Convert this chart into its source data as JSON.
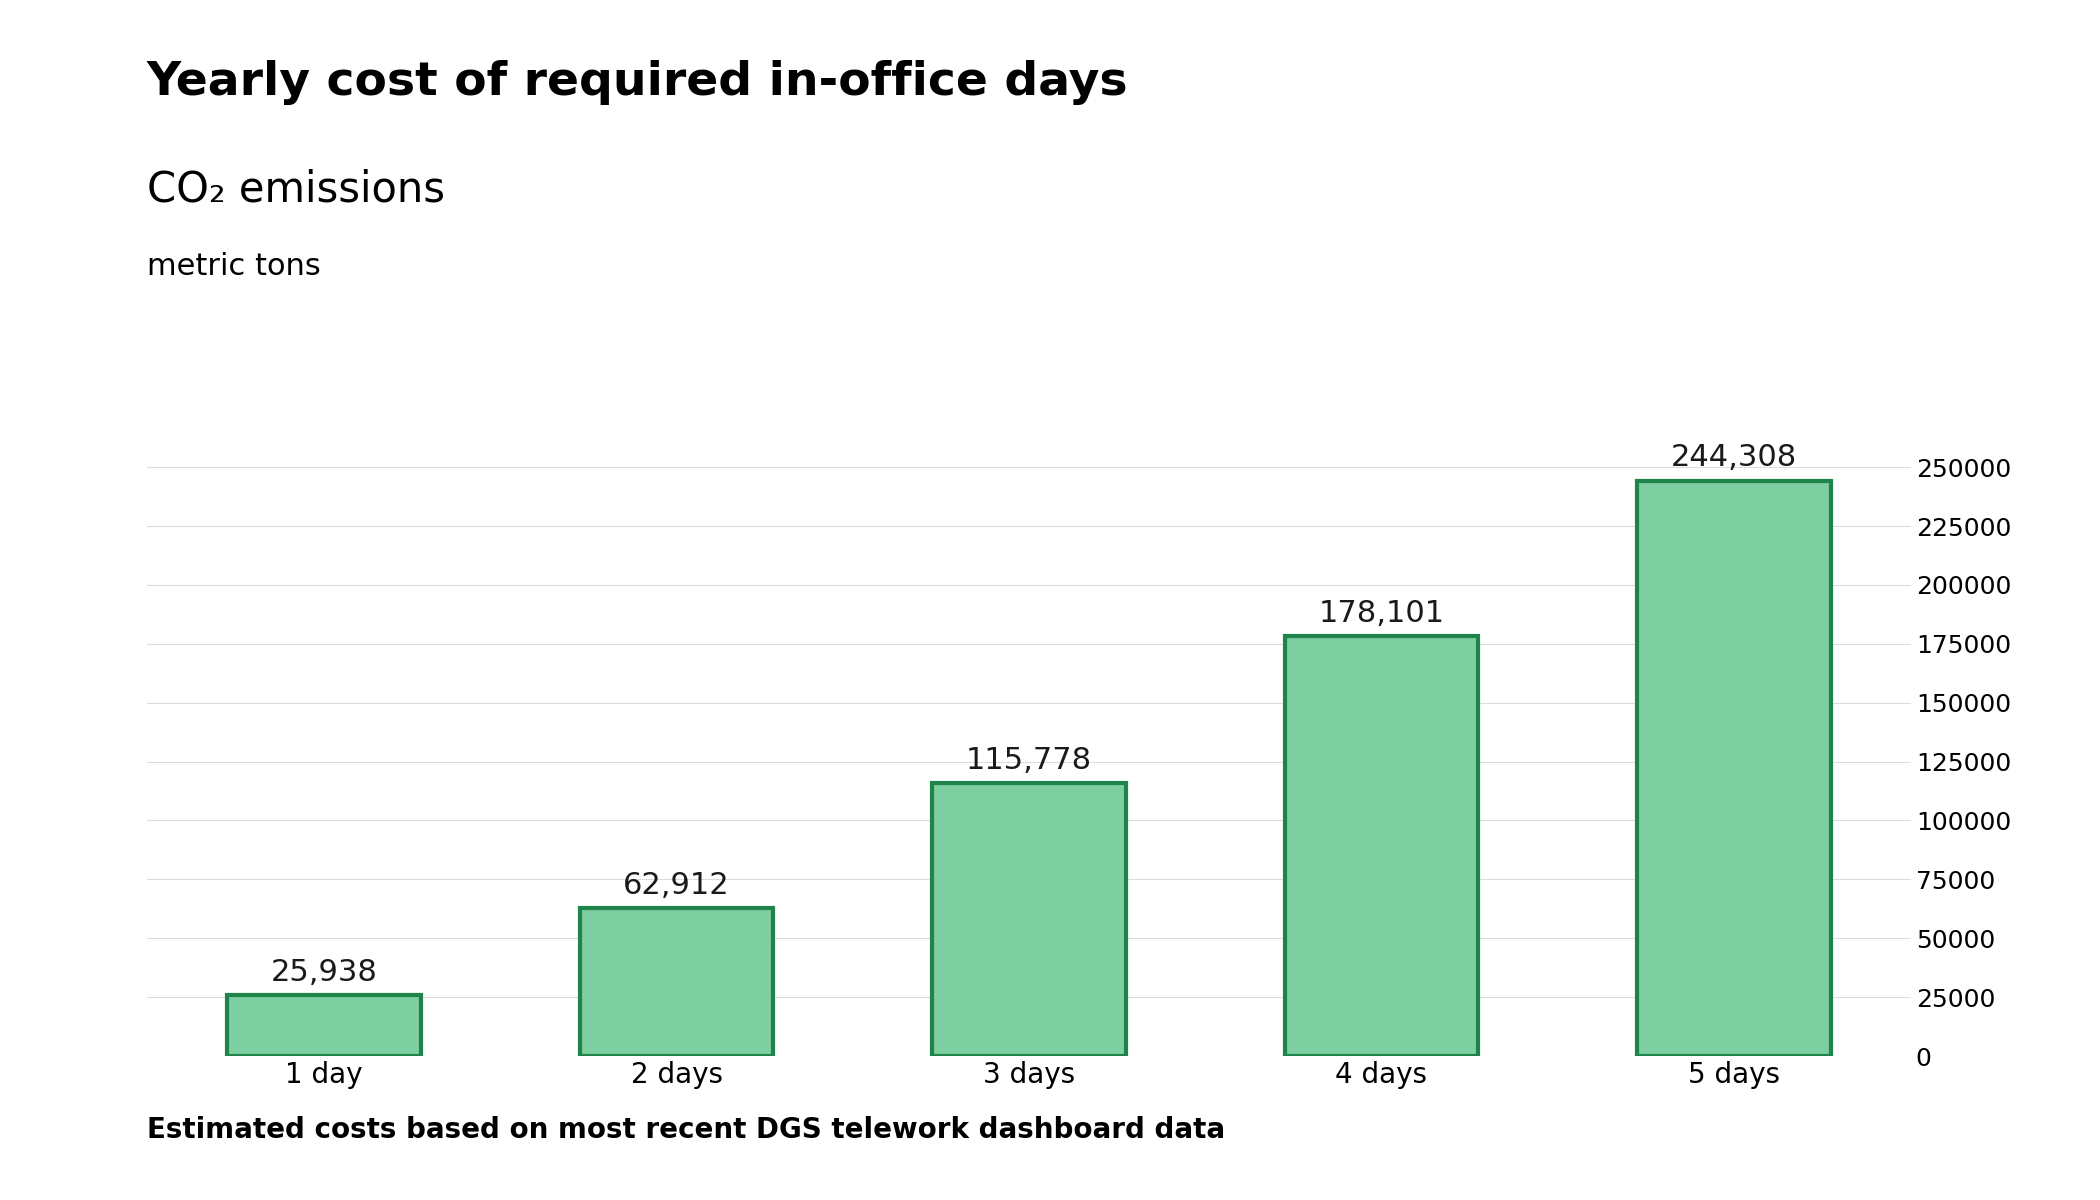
{
  "title": "Yearly cost of required in-office days",
  "subtitle": "CO₂ emissions",
  "subtitle2": "metric tons",
  "categories": [
    "1 day",
    "2 days",
    "3 days",
    "4 days",
    "5 days"
  ],
  "values": [
    25938,
    62912,
    115778,
    178101,
    244308
  ],
  "labels": [
    "25,938",
    "62,912",
    "115,778",
    "178,101",
    "244,308"
  ],
  "bar_fill_color": "#7DCEA0",
  "bar_edge_color": "#1E8449",
  "bar_edge_linewidth": 3,
  "title_fontsize": 34,
  "subtitle_fontsize": 30,
  "subtitle2_fontsize": 22,
  "label_fontsize": 22,
  "tick_fontsize": 18,
  "footer_text": "Estimated costs based on most recent DGS telework dashboard data",
  "footer_fontsize": 20,
  "ylim": [
    0,
    270000
  ],
  "yticks": [
    0,
    25000,
    50000,
    75000,
    100000,
    125000,
    150000,
    175000,
    200000,
    225000,
    250000
  ],
  "background_color": "#FFFFFF",
  "text_color": "#1a1a1a",
  "title_color": "#000000"
}
